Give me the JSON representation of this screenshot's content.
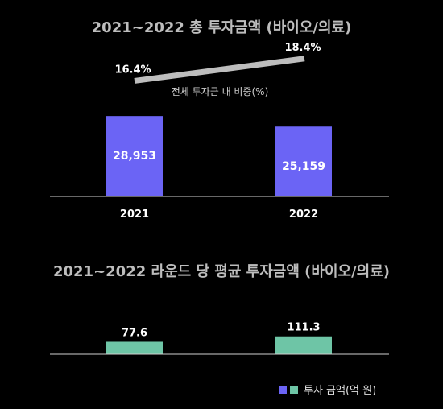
{
  "colors": {
    "background": "#000000",
    "bar_2021": "#6b64f5",
    "bar_2022": "#6b64f5",
    "bar_avg": "#6ec5a6",
    "share_line": "#bdbdbd",
    "axis": "#cfcfcf",
    "title": "#bdbdbd"
  },
  "chart_data": [
    {
      "type": "bar",
      "title": "2021~2022 총 투자금액 (바이오/의료)",
      "categories": [
        "2021",
        "2022"
      ],
      "values": [
        28953,
        25159
      ],
      "value_labels": [
        "28,953",
        "25,159"
      ],
      "ylim": [
        0,
        29000
      ],
      "grid": false,
      "line_overlay": {
        "type": "line",
        "label": "전체 투자금 내 비중(%)",
        "values": [
          16.4,
          18.4
        ],
        "value_labels": [
          "16.4%",
          "18.4%"
        ],
        "ylim": [
          16,
          18.6
        ]
      }
    },
    {
      "type": "bar",
      "title": "2021~2022 라운드 당 평균 투자금액 (바이오/의료)",
      "categories": [
        "2021",
        "2022"
      ],
      "values": [
        77.6,
        111.3
      ],
      "value_labels": [
        "77.6",
        "111.3"
      ],
      "ylim": [
        0,
        1150
      ],
      "grid": false
    }
  ],
  "legend": {
    "label": "투자 금액(억 원)",
    "swatch_colors": [
      "#6b64f5",
      "#6ec5a6"
    ],
    "placement": "bottom-right"
  }
}
